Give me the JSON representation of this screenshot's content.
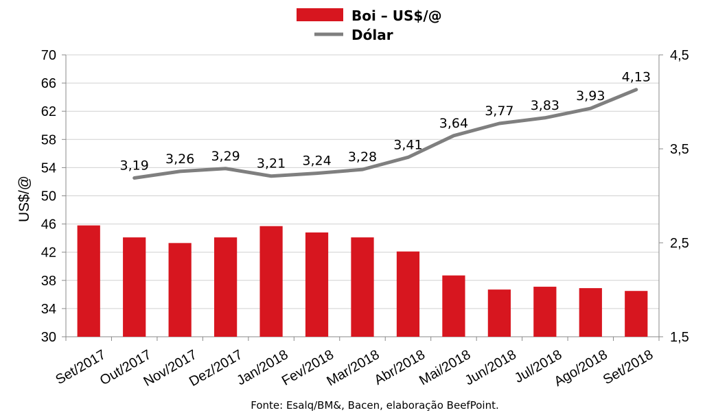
{
  "chart_data": {
    "type": "bar+line",
    "categories": [
      "Set/2017",
      "Out/2017",
      "Nov/2017",
      "Dez/2017",
      "Jan/2018",
      "Fev/2018",
      "Mar/2018",
      "Abr/2018",
      "Mai/2018",
      "Jun/2018",
      "Jul/2018",
      "Ago/2018",
      "Set/2018"
    ],
    "series": [
      {
        "name": "Boi – US$/@",
        "type": "bar",
        "axis": "left",
        "color": "#d7161f",
        "values": [
          45.8,
          44.1,
          43.3,
          44.1,
          45.7,
          44.8,
          44.1,
          42.1,
          38.7,
          36.7,
          37.1,
          36.9,
          36.5
        ]
      },
      {
        "name": "Dólar",
        "type": "line",
        "axis": "right",
        "color": "#7f7f7f",
        "values": [
          null,
          3.19,
          3.26,
          3.29,
          3.21,
          3.24,
          3.28,
          3.41,
          3.64,
          3.77,
          3.83,
          3.93,
          4.13
        ],
        "labels": [
          null,
          "3,19",
          "3,26",
          "3,29",
          "3,21",
          "3,24",
          "3,28",
          "3,41",
          "3,64",
          "3,77",
          "3,83",
          "3,93",
          "4,13"
        ]
      }
    ],
    "ylabel": "US$/@",
    "ylim": [
      30,
      70
    ],
    "yticks": [
      "30",
      "34",
      "38",
      "42",
      "46",
      "50",
      "54",
      "58",
      "62",
      "66",
      "70"
    ],
    "y2lim": [
      1.5,
      4.5
    ],
    "y2ticks": [
      "1,5",
      "2,5",
      "3,5",
      "4,5"
    ],
    "grid": true,
    "legend": "top-center",
    "source": "Fonte: Esalq/BM&, Bacen, elaboração BeefPoint."
  }
}
